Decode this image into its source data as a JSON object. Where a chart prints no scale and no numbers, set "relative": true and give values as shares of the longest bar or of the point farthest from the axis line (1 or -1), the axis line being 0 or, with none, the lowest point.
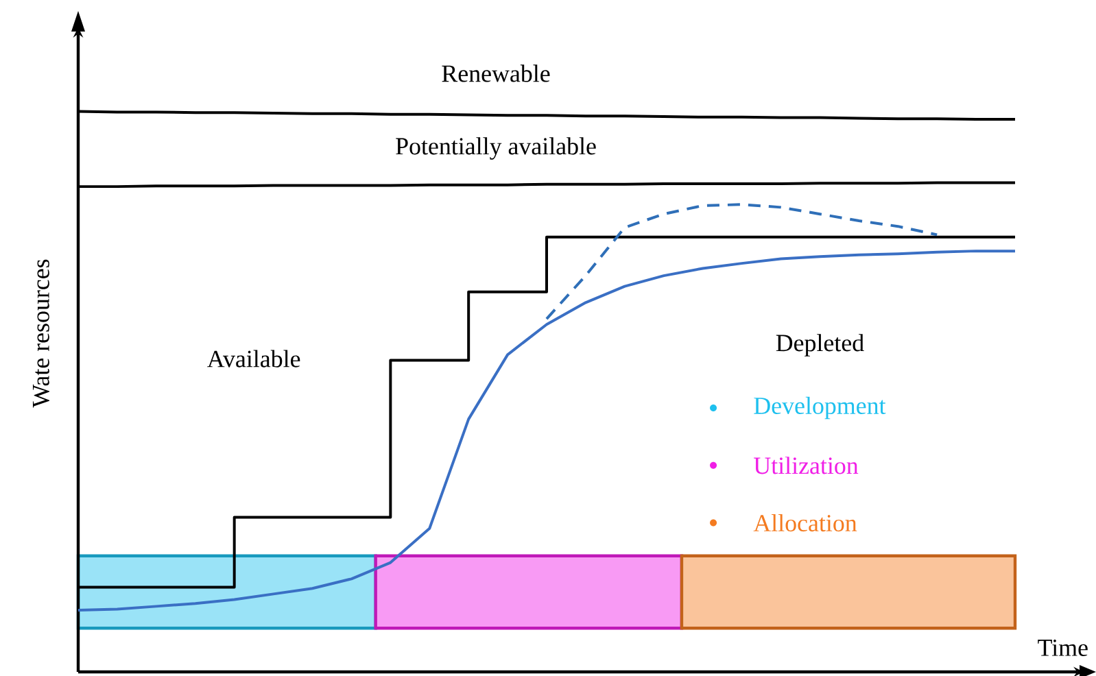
{
  "chart_data": {
    "type": "line",
    "relative": true,
    "xlabel": "Time",
    "ylabel": "Wate resources",
    "categories": [
      null,
      null,
      null,
      null,
      null,
      null,
      null,
      null,
      null,
      null,
      null,
      null,
      null,
      null,
      null,
      null,
      null,
      null,
      null,
      null,
      null,
      null,
      null,
      null,
      null
    ],
    "series": [
      {
        "name": "Renewable",
        "color": "#000000",
        "values": [
          1.0,
          0.999,
          0.999,
          0.998,
          0.998,
          0.997,
          0.996,
          0.996,
          0.995,
          0.995,
          0.994,
          0.993,
          0.993,
          0.992,
          0.992,
          0.991,
          0.99,
          0.99,
          0.989,
          0.989,
          0.988,
          0.987,
          0.987,
          0.986,
          0.986
        ]
      },
      {
        "name": "Potentially available",
        "color": "#000000",
        "values": [
          0.866,
          0.866,
          0.867,
          0.867,
          0.867,
          0.868,
          0.868,
          0.868,
          0.868,
          0.869,
          0.869,
          0.869,
          0.87,
          0.87,
          0.87,
          0.871,
          0.871,
          0.871,
          0.871,
          0.872,
          0.872,
          0.872,
          0.873,
          0.873,
          0.873
        ]
      },
      {
        "type": "step",
        "color": "#000000",
        "values": [
          0.151,
          0.151,
          0.151,
          0.151,
          0.276,
          0.276,
          0.276,
          0.276,
          0.556,
          0.556,
          0.678,
          0.678,
          0.776,
          0.776,
          0.776,
          0.776,
          0.776,
          0.776,
          0.776,
          0.776,
          0.776,
          0.776,
          0.776,
          0.776,
          0.776
        ]
      },
      {
        "color": "#3a6fc4",
        "values": [
          0.11,
          0.112,
          0.117,
          0.122,
          0.129,
          0.139,
          0.149,
          0.166,
          0.195,
          0.256,
          0.451,
          0.566,
          0.62,
          0.659,
          0.688,
          0.707,
          0.72,
          0.729,
          0.737,
          0.741,
          0.744,
          0.746,
          0.749,
          0.751,
          0.751
        ]
      },
      {
        "color": "#2f6fb8",
        "line_style": "dashed",
        "values": [
          null,
          null,
          null,
          null,
          null,
          null,
          null,
          null,
          null,
          null,
          null,
          null,
          0.63,
          0.707,
          0.793,
          0.817,
          0.832,
          0.834,
          0.829,
          0.817,
          0.805,
          0.795,
          0.78,
          null,
          null
        ]
      }
    ],
    "annotations": [
      "Available",
      "Depleted",
      "Development",
      "Utilization",
      "Allocation"
    ]
  }
}
